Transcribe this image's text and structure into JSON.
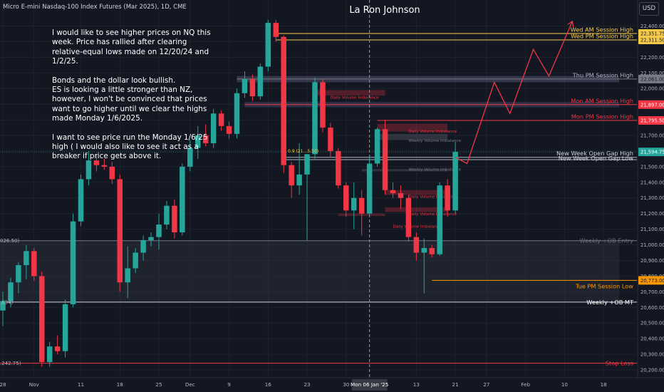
{
  "header": {
    "symbol_title": "Micro E-mini Nasdaq-100 Index Futures (Mar 2025), 1D, CME",
    "author": "La Ron Johnson",
    "currency": "USD"
  },
  "note": {
    "paragraphs": [
      "I would like to see higher prices on NQ this week. Price has rallied after clearing relative-equal lows made on 12/20/24 and 1/2/25.",
      "Bonds and the dollar look bullish.\nES is looking a little stronger than NZ, however, I won't be convinced that prices want to go higher until we clear the highs made Monday 1/6/2025.",
      "I want to see price run the Monday 1/6/25 high ( I would also like to see it act as a breaker if price gets above it."
    ]
  },
  "colors": {
    "background": "#131722",
    "grid": "#1e222d",
    "up": "#26a69a",
    "down": "#f23645",
    "gold": "#f7c948",
    "gray_line": "#787b86",
    "orange": "#ff9800",
    "red_label": "#f23645"
  },
  "chart_data": {
    "type": "candlestick",
    "ylim": [
      20150,
      22475
    ],
    "y_ticks": [
      20200,
      20300,
      20400,
      20500,
      20600,
      20700,
      20800,
      20900,
      21000,
      21100,
      21200,
      21300,
      21400,
      21500,
      21600,
      21700,
      21800,
      21900,
      22000,
      22100,
      22200,
      22300,
      22400
    ],
    "y_tick_labels": [
      "20,200.00",
      "20,300.00",
      "20,400.00",
      "20,500.00",
      "20,600.00",
      "20,700.00",
      "20,800.00",
      "20,900.00",
      "21,000.00",
      "21,100.00",
      "21,200.00",
      "21,300.00",
      "21,400.00",
      "21,500.00",
      "21,600.00",
      "21,700.00",
      "21,800.00",
      "21,900.00",
      "22,000.00",
      "22,100.00",
      "22,200.00",
      "22,300.00",
      "22,400.00"
    ],
    "x_labels": [
      {
        "label": "28",
        "i": 0
      },
      {
        "label": "Nov",
        "i": 4
      },
      {
        "label": "11",
        "i": 10
      },
      {
        "label": "18",
        "i": 15
      },
      {
        "label": "25",
        "i": 20
      },
      {
        "label": "Dec",
        "i": 24
      },
      {
        "label": "9",
        "i": 29
      },
      {
        "label": "16",
        "i": 34
      },
      {
        "label": "23",
        "i": 39
      },
      {
        "label": "30",
        "i": 44
      },
      {
        "label": "13",
        "i": 53
      },
      {
        "label": "21",
        "i": 58
      },
      {
        "label": "27",
        "i": 62
      },
      {
        "label": "Feb",
        "i": 67
      },
      {
        "label": "10",
        "i": 72
      },
      {
        "label": "18",
        "i": 77
      }
    ],
    "crosshair": {
      "label": "Mon 06 Jan '25",
      "i": 47
    },
    "candles": [
      {
        "o": 20580,
        "h": 20700,
        "l": 20480,
        "c": 20640
      },
      {
        "o": 20640,
        "h": 20790,
        "l": 20600,
        "c": 20760
      },
      {
        "o": 20760,
        "h": 20890,
        "l": 20690,
        "c": 20870
      },
      {
        "o": 20870,
        "h": 21000,
        "l": 20780,
        "c": 20960
      },
      {
        "o": 20960,
        "h": 20980,
        "l": 20770,
        "c": 20800
      },
      {
        "o": 20800,
        "h": 20830,
        "l": 20220,
        "c": 20250
      },
      {
        "o": 20250,
        "h": 20380,
        "l": 20220,
        "c": 20350
      },
      {
        "o": 20350,
        "h": 20420,
        "l": 20300,
        "c": 20320
      },
      {
        "o": 20320,
        "h": 20650,
        "l": 20280,
        "c": 20620
      },
      {
        "o": 20620,
        "h": 21200,
        "l": 20600,
        "c": 21150
      },
      {
        "o": 21150,
        "h": 21450,
        "l": 21120,
        "c": 21420
      },
      {
        "o": 21420,
        "h": 21600,
        "l": 21380,
        "c": 21540
      },
      {
        "o": 21540,
        "h": 21580,
        "l": 21470,
        "c": 21510
      },
      {
        "o": 21510,
        "h": 21550,
        "l": 21480,
        "c": 21500
      },
      {
        "o": 21500,
        "h": 21530,
        "l": 21390,
        "c": 21420
      },
      {
        "o": 21420,
        "h": 21450,
        "l": 20700,
        "c": 20760
      },
      {
        "o": 20760,
        "h": 20990,
        "l": 20660,
        "c": 20850
      },
      {
        "o": 20850,
        "h": 20980,
        "l": 20820,
        "c": 20950
      },
      {
        "o": 20950,
        "h": 21060,
        "l": 20900,
        "c": 21030
      },
      {
        "o": 21030,
        "h": 21080,
        "l": 20990,
        "c": 21050
      },
      {
        "o": 21050,
        "h": 21200,
        "l": 20970,
        "c": 21130
      },
      {
        "o": 21130,
        "h": 21280,
        "l": 21100,
        "c": 21250
      },
      {
        "o": 21250,
        "h": 21290,
        "l": 21040,
        "c": 21080
      },
      {
        "o": 21080,
        "h": 21520,
        "l": 21060,
        "c": 21500
      },
      {
        "o": 21500,
        "h": 21670,
        "l": 21470,
        "c": 21620
      },
      {
        "o": 21620,
        "h": 21760,
        "l": 21550,
        "c": 21700
      },
      {
        "o": 21700,
        "h": 21770,
        "l": 21630,
        "c": 21650
      },
      {
        "o": 21650,
        "h": 21870,
        "l": 21620,
        "c": 21840
      },
      {
        "o": 21840,
        "h": 21860,
        "l": 21730,
        "c": 21760
      },
      {
        "o": 21760,
        "h": 21790,
        "l": 21680,
        "c": 21710
      },
      {
        "o": 21710,
        "h": 22000,
        "l": 21680,
        "c": 21970
      },
      {
        "o": 21970,
        "h": 22110,
        "l": 21940,
        "c": 22060
      },
      {
        "o": 22060,
        "h": 22090,
        "l": 21920,
        "c": 21950
      },
      {
        "o": 21950,
        "h": 22160,
        "l": 21930,
        "c": 22140
      },
      {
        "o": 22140,
        "h": 22440,
        "l": 22110,
        "c": 22420
      },
      {
        "o": 22420,
        "h": 22440,
        "l": 22300,
        "c": 22330
      },
      {
        "o": 22330,
        "h": 22340,
        "l": 21460,
        "c": 21510
      },
      {
        "o": 21510,
        "h": 21530,
        "l": 21300,
        "c": 21380
      },
      {
        "o": 21380,
        "h": 21650,
        "l": 21320,
        "c": 21450
      },
      {
        "o": 21450,
        "h": 21580,
        "l": 21030,
        "c": 21580
      },
      {
        "o": 21580,
        "h": 22070,
        "l": 21550,
        "c": 22040
      },
      {
        "o": 22040,
        "h": 22060,
        "l": 21720,
        "c": 21750
      },
      {
        "o": 21750,
        "h": 21780,
        "l": 21560,
        "c": 21600
      },
      {
        "o": 21600,
        "h": 21620,
        "l": 21360,
        "c": 21380
      },
      {
        "o": 21380,
        "h": 21400,
        "l": 21180,
        "c": 21220
      },
      {
        "o": 21220,
        "h": 21400,
        "l": 21100,
        "c": 21300
      },
      {
        "o": 21300,
        "h": 21350,
        "l": 21060,
        "c": 21200
      },
      {
        "o": 21200,
        "h": 21560,
        "l": 21190,
        "c": 21520
      },
      {
        "o": 21520,
        "h": 21750,
        "l": 21500,
        "c": 21740
      },
      {
        "o": 21740,
        "h": 21800,
        "l": 21320,
        "c": 21350
      },
      {
        "o": 21350,
        "h": 21400,
        "l": 21300,
        "c": 21330
      },
      {
        "o": 21330,
        "h": 21380,
        "l": 21230,
        "c": 21300
      },
      {
        "o": 21300,
        "h": 21320,
        "l": 21020,
        "c": 21050
      },
      {
        "o": 21050,
        "h": 21080,
        "l": 20900,
        "c": 20950
      },
      {
        "o": 20950,
        "h": 21040,
        "l": 20690,
        "c": 20980
      },
      {
        "o": 20980,
        "h": 21000,
        "l": 20920,
        "c": 20940
      },
      {
        "o": 20940,
        "h": 21400,
        "l": 20930,
        "c": 21380
      },
      {
        "o": 21380,
        "h": 21420,
        "l": 21180,
        "c": 21220
      },
      {
        "o": 21220,
        "h": 21660,
        "l": 21200,
        "c": 21595
      }
    ],
    "projection": [
      {
        "i": 58.0,
        "y": 21560
      },
      {
        "i": 59.5,
        "y": 21520
      },
      {
        "i": 63.0,
        "y": 22040
      },
      {
        "i": 65.0,
        "y": 21840
      },
      {
        "i": 68.0,
        "y": 22250
      },
      {
        "i": 70.0,
        "y": 22080
      },
      {
        "i": 73.0,
        "y": 22430
      }
    ],
    "levels": [
      {
        "name": "Wed AM Session High",
        "price": 22352,
        "start_i": 35,
        "color": "#f7c948",
        "label_color": "#f7c948",
        "price_label": "22,351.75",
        "tag_bg": "#f7c948",
        "tag_fg": "#131722",
        "width": 1
      },
      {
        "name": "Wed PM Session High",
        "price": 22311,
        "start_i": 35,
        "color": "#f7c948",
        "label_color": "#f7c948",
        "price_label": "22,311.50",
        "tag_bg": "#f7c948",
        "tag_fg": "#131722",
        "width": 1
      },
      {
        "name": "Thu PM Session High",
        "price": 22061,
        "start_i": 30,
        "color": "#787b86",
        "label_color": "#b2b5be",
        "price_label": "22,061.00",
        "tag_bg": "#787b86",
        "tag_fg": "#131722",
        "width": 1
      },
      {
        "name": "Mon AM Session High",
        "price": 21897,
        "start_i": 31,
        "color": "#f23645",
        "label_color": "#f23645",
        "price_label": "21,897.00",
        "tag_bg": "#f23645",
        "tag_fg": "#ffffff",
        "width": 1
      },
      {
        "name": "Mon PM Session High",
        "price": 21795.5,
        "start_i": 48,
        "color": "#f23645",
        "label_color": "#f23645",
        "price_label": "21,795.50",
        "tag_bg": "#f23645",
        "tag_fg": "#ffffff",
        "width": 1
      },
      {
        "name": "New Week Open Gap High",
        "price": 21560,
        "start_i": 36,
        "color": "#b2b5be",
        "label_color": "#d1d4dc",
        "price_label": "",
        "tag_bg": "",
        "tag_fg": "",
        "width": 1
      },
      {
        "name": "New Week Open Gap Low",
        "price": 21545,
        "start_i": 36,
        "color": "#b2b5be",
        "label_color": "#d1d4dc",
        "price_label": "",
        "tag_bg": "",
        "tag_fg": "",
        "width": 1
      },
      {
        "name": "Weekly +OB Entry",
        "price": 21026.5,
        "start_i": -2,
        "color": "#787b86",
        "label_color": "#6a6d78",
        "price_label": "",
        "tag_bg": "",
        "tag_fg": "",
        "width": 1
      },
      {
        "name": "Tue PM Session Low",
        "price": 20773,
        "start_i": 55,
        "color": "#ff9800",
        "label_color": "#ff9800",
        "price_label": "20,773.00",
        "tag_bg": "#ff9800",
        "tag_fg": "#131722",
        "width": 1
      },
      {
        "name": "Weekly +OB MT",
        "price": 20634,
        "start_i": -2,
        "color": "#d1d4dc",
        "label_color": "#ffffff",
        "price_label": "",
        "tag_bg": "",
        "tag_fg": "",
        "width": 1
      },
      {
        "name": "Stop Loss",
        "price": 20242.75,
        "start_i": -2,
        "color": "#f23645",
        "label_color": "#f23645",
        "price_label": "",
        "tag_bg": "",
        "tag_fg": "",
        "width": 1
      }
    ],
    "current_price": {
      "price": 21594.75,
      "label": "21,594.75"
    },
    "left_partial_labels": [
      {
        "text": "026.50)",
        "price": 21026.5
      },
      {
        "text": ",634)",
        "price": 20634
      },
      {
        "text": ".242.75)",
        "price": 20242.75
      }
    ],
    "fib_label": {
      "text": "0.9 (21…5.50)",
      "price": 21590,
      "i": 38.5
    },
    "imbalance_zones": [
      {
        "label": "Daily Volume Imbalance",
        "top": 21990,
        "bottom": 21955,
        "start_i": 40,
        "end_i": 49,
        "label_i": 42,
        "label_price": 21935,
        "color": "#f23645"
      },
      {
        "label": "Daily Volume Imbalance",
        "top": 21775,
        "bottom": 21725,
        "start_i": 48,
        "end_i": 57,
        "label_i": 52,
        "label_price": 21718,
        "color": "#f23645"
      },
      {
        "label": "Weekly Volume Imbalance",
        "top": 21710,
        "bottom": 21670,
        "start_i": 48,
        "end_i": 57,
        "label_i": 52,
        "label_price": 21660,
        "color": "#787b86"
      },
      {
        "label": "Weekly Volume Imbalance",
        "top": 21485,
        "bottom": 21470,
        "start_i": 46,
        "end_i": 57,
        "label_i": 52,
        "label_price": 21475,
        "color": "#787b86"
      },
      {
        "label": "Daily Volume Imbalance",
        "top": 21350,
        "bottom": 21320,
        "start_i": 49,
        "end_i": 57,
        "label_i": 52,
        "label_price": 21300,
        "color": "#f23645"
      },
      {
        "label": "Daily Volume Imbalance",
        "top": 21240,
        "bottom": 21210,
        "start_i": 49,
        "end_i": 57,
        "label_i": 52,
        "label_price": 21190,
        "color": "#f23645"
      },
      {
        "label": "Daily Volume Imbalance",
        "top": 21200,
        "bottom": 21185,
        "start_i": 43,
        "end_i": 49,
        "label_i": 50,
        "label_price": 21110,
        "color": "#f23645"
      }
    ],
    "zones": [
      {
        "name": "weekly-ob-zone",
        "top": 21026.5,
        "bottom": 20634,
        "start_i": -2,
        "end_i": 79,
        "color": "#363a45",
        "opacity": 0.35
      },
      {
        "name": "thu-pm-zone",
        "top": 22080,
        "bottom": 22040,
        "start_i": 30,
        "end_i": 79,
        "color": "#5d5f7a",
        "opacity": 0.45
      },
      {
        "name": "mon-am-zone",
        "top": 21915,
        "bottom": 21880,
        "start_i": 31,
        "end_i": 79,
        "color": "#4a4b6a",
        "opacity": 0.45
      }
    ]
  }
}
